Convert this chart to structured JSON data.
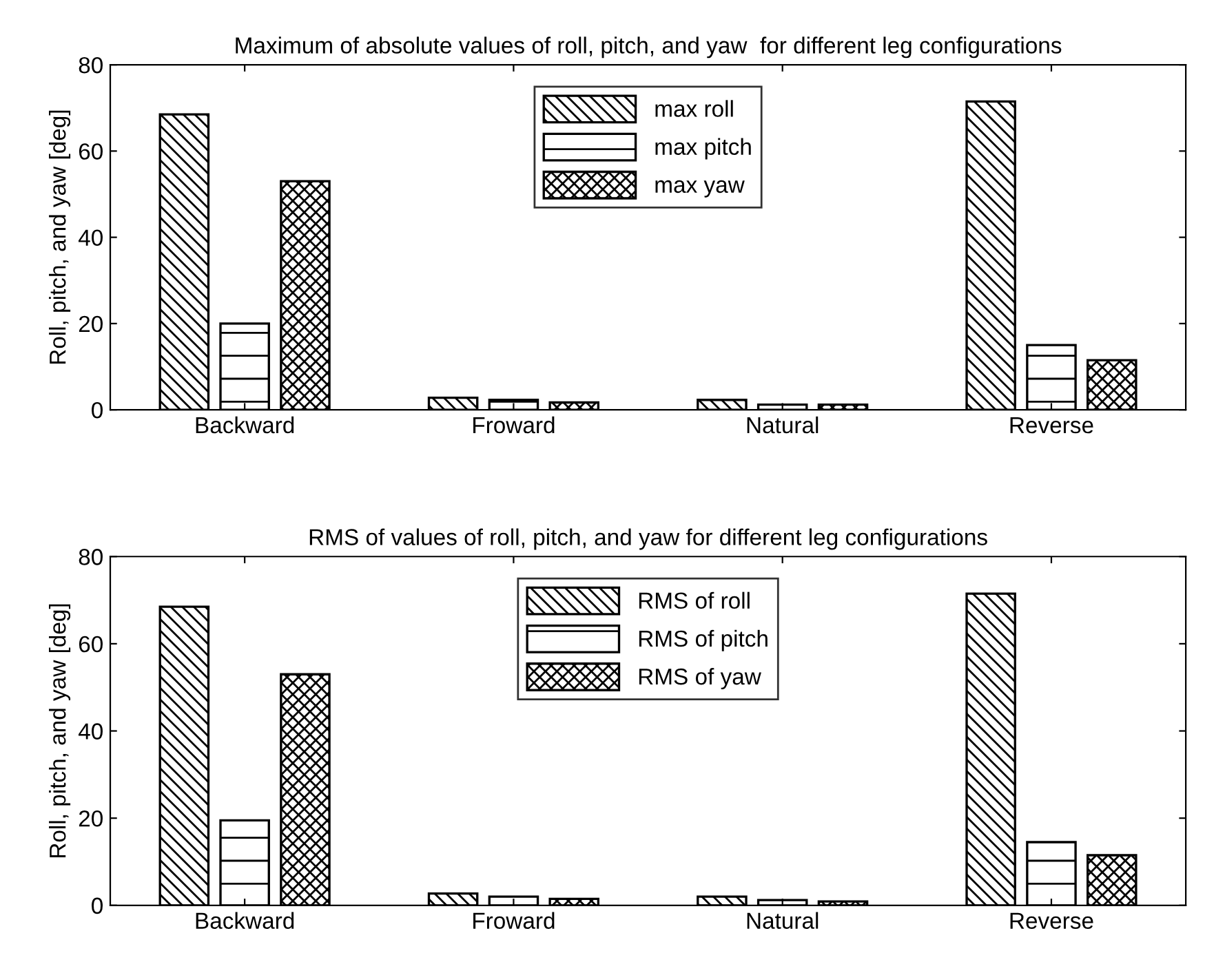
{
  "chart_data": [
    {
      "type": "bar",
      "title": "Maximum of absolute values of roll, pitch, and yaw  for different leg configurations",
      "ylabel": "Roll, pitch, and yaw [deg]",
      "categories": [
        "Backward",
        "Froward",
        "Natural",
        "Reverse"
      ],
      "series": [
        {
          "name": "max roll",
          "color": "#000000",
          "values": [
            68.5,
            2.8,
            2.3,
            71.5
          ]
        },
        {
          "name": "max pitch",
          "color": "#000000",
          "values": [
            20,
            2.3,
            1.2,
            15
          ]
        },
        {
          "name": "max yaw",
          "color": "#000000",
          "values": [
            53,
            1.7,
            1.2,
            11.5
          ]
        }
      ],
      "ylim": [
        0,
        80
      ],
      "yticks": [
        0,
        20,
        40,
        60,
        80
      ],
      "grid": false,
      "legend": "top"
    },
    {
      "type": "bar",
      "title": "RMS of values of roll, pitch, and yaw for different leg configurations",
      "ylabel": "Roll, pitch, and yaw [deg]",
      "categories": [
        "Backward",
        "Froward",
        "Natural",
        "Reverse"
      ],
      "series": [
        {
          "name": "RMS of roll",
          "color": "#000000",
          "values": [
            68.5,
            2.7,
            2.0,
            71.5
          ]
        },
        {
          "name": "RMS of pitch",
          "color": "#000000",
          "values": [
            19.5,
            2.0,
            1.2,
            14.5
          ]
        },
        {
          "name": "RMS of yaw",
          "color": "#000000",
          "values": [
            53,
            1.5,
            0.9,
            11.5
          ]
        }
      ],
      "ylim": [
        0,
        80
      ],
      "yticks": [
        0,
        20,
        40,
        60,
        80
      ],
      "grid": false,
      "legend": "top"
    }
  ]
}
